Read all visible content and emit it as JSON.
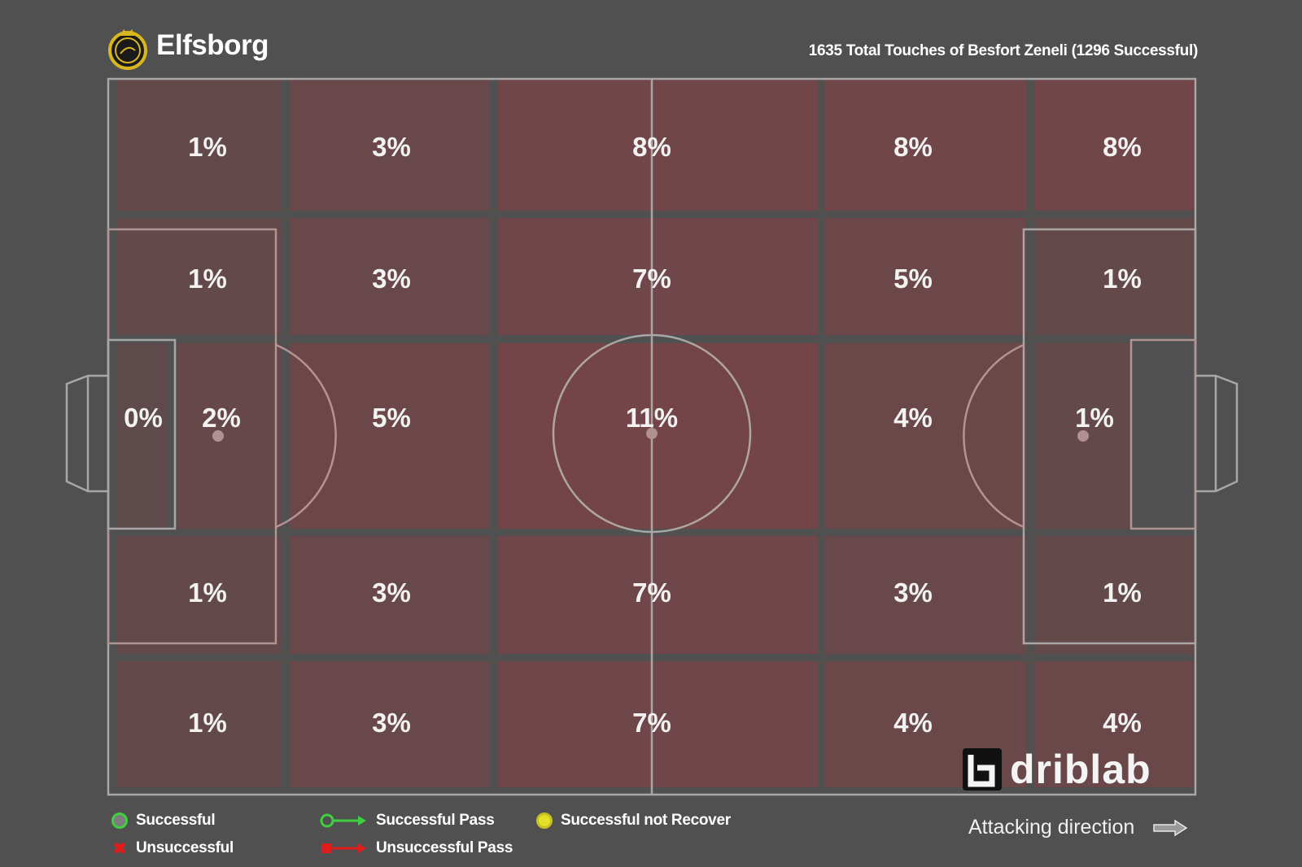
{
  "header": {
    "team_name": "Elfsborg",
    "title": "1635 Total Touches of Besfort Zeneli (1296 Successful)"
  },
  "chart_data": {
    "type": "heatmap",
    "title": "1635 Total Touches of Besfort Zeneli (1296 Successful)",
    "total_touches": 1635,
    "successful_touches": 1296,
    "unit": "%",
    "zones": [
      {
        "value": 1,
        "label": "1%"
      },
      {
        "value": 3,
        "label": "3%"
      },
      {
        "value": 8,
        "label": "8%"
      },
      {
        "value": 8,
        "label": "8%"
      },
      {
        "value": 8,
        "label": "8%"
      },
      {
        "value": 1,
        "label": "1%"
      },
      {
        "value": 3,
        "label": "3%"
      },
      {
        "value": 7,
        "label": "7%"
      },
      {
        "value": 5,
        "label": "5%"
      },
      {
        "value": 1,
        "label": "1%"
      },
      {
        "value": 0,
        "label": "0%"
      },
      {
        "value": 2,
        "label": "2%"
      },
      {
        "value": 5,
        "label": "5%"
      },
      {
        "value": 11,
        "label": "11%"
      },
      {
        "value": 4,
        "label": "4%"
      },
      {
        "value": 1,
        "label": "1%"
      },
      {
        "value": 1,
        "label": "1%"
      },
      {
        "value": 3,
        "label": "3%"
      },
      {
        "value": 7,
        "label": "7%"
      },
      {
        "value": 3,
        "label": "3%"
      },
      {
        "value": 1,
        "label": "1%"
      },
      {
        "value": 1,
        "label": "1%"
      },
      {
        "value": 3,
        "label": "3%"
      },
      {
        "value": 7,
        "label": "7%"
      },
      {
        "value": 4,
        "label": "4%"
      },
      {
        "value": 4,
        "label": "4%"
      }
    ],
    "colors": {
      "background": "#505050",
      "low": "#5e4a4b",
      "high": "#744548",
      "lines": "#bdbdbd"
    }
  },
  "legend": {
    "successful": "Successful",
    "unsuccessful": "Unsuccessful",
    "successful_pass": "Successful Pass",
    "unsuccessful_pass": "Unsuccessful Pass",
    "successful_not_recover": "Successful not Recover"
  },
  "footer": {
    "attacking_direction": "Attacking direction",
    "brand": "driblab"
  }
}
